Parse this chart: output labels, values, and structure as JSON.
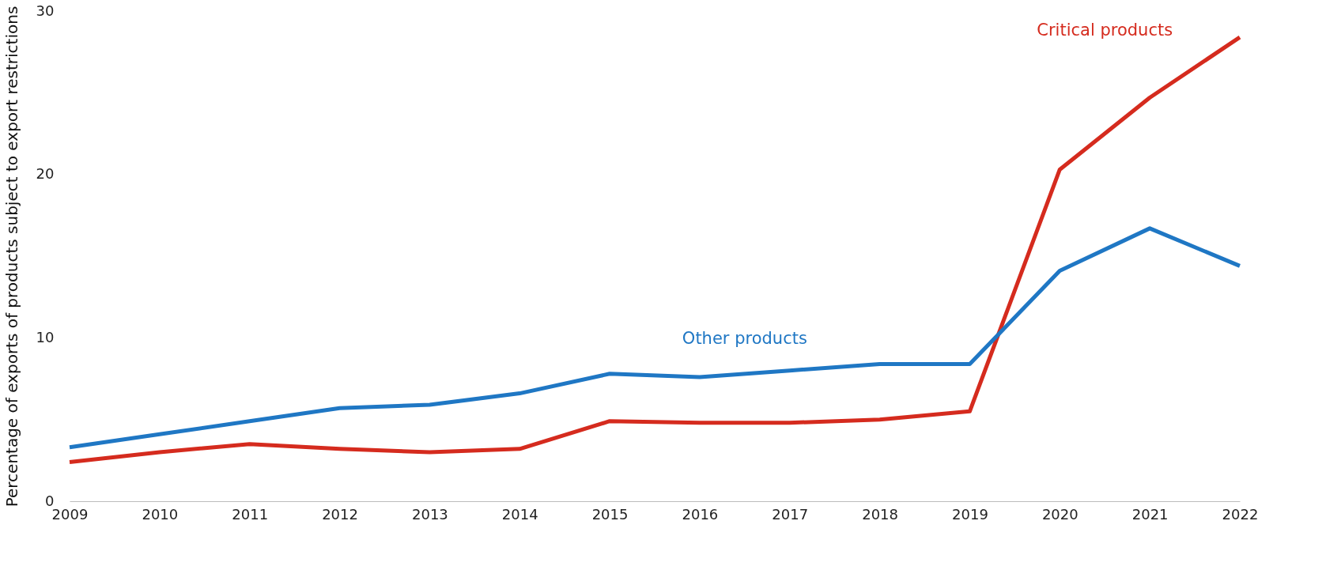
{
  "chart_data": {
    "type": "line",
    "ylabel": "Percentage of exports of products subject to export restrictions",
    "categories": [
      "2009",
      "2010",
      "2011",
      "2012",
      "2013",
      "2014",
      "2015",
      "2016",
      "2017",
      "2018",
      "2019",
      "2020",
      "2021",
      "2022"
    ],
    "series": [
      {
        "name": "Critical products",
        "color": "#d52b1e",
        "values": [
          2.4,
          3.0,
          3.5,
          3.2,
          3.0,
          3.2,
          4.9,
          4.8,
          4.8,
          5.0,
          5.5,
          20.3,
          24.7,
          28.4
        ]
      },
      {
        "name": "Other products",
        "color": "#1f77c4",
        "values": [
          3.3,
          4.1,
          4.9,
          5.7,
          5.9,
          6.6,
          7.8,
          7.6,
          8.0,
          8.4,
          8.4,
          14.1,
          16.7,
          14.4
        ]
      }
    ],
    "ylim": [
      0,
      30
    ],
    "yticks": [
      0,
      10,
      20,
      30
    ],
    "grid": false,
    "legend": false,
    "marker": "none",
    "line_style": "solid"
  }
}
